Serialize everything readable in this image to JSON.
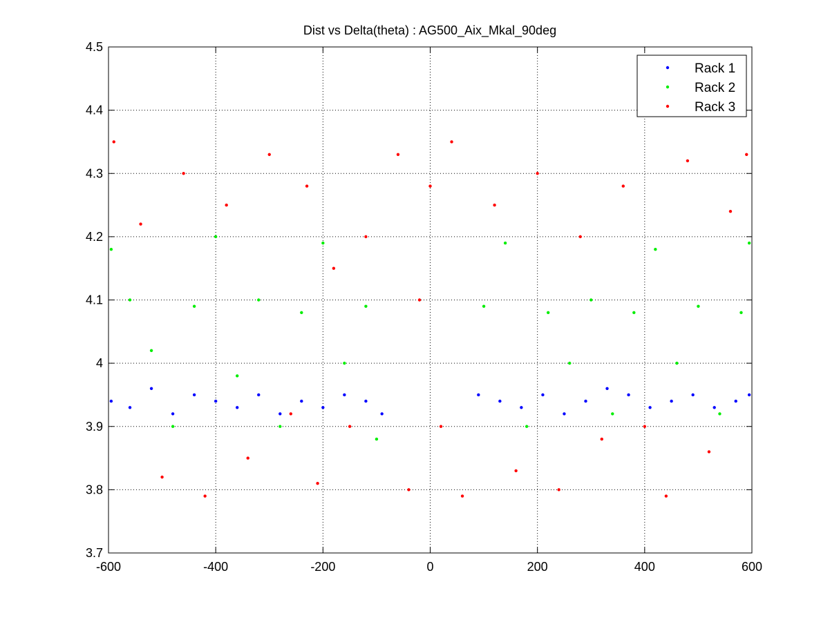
{
  "chart_data": {
    "type": "scatter",
    "title": "Dist vs Delta(theta) : AG500_Aix_Mkal_90deg",
    "xlabel": "",
    "ylabel": "",
    "xlim": [
      -600,
      600
    ],
    "ylim": [
      3.7,
      4.5
    ],
    "x_ticks": [
      "-600",
      "-400",
      "-200",
      "0",
      "200",
      "400",
      "600"
    ],
    "y_ticks": [
      "3.7",
      "3.8",
      "3.9",
      "4",
      "4.1",
      "4.2",
      "4.3",
      "4.4",
      "4.5"
    ],
    "grid": true,
    "legend_position": "top-right",
    "series": [
      {
        "name": "Rack 1",
        "color": "#0000ff",
        "points": [
          [
            -595,
            3.94
          ],
          [
            -560,
            3.93
          ],
          [
            -520,
            3.96
          ],
          [
            -480,
            3.92
          ],
          [
            -440,
            3.95
          ],
          [
            -400,
            3.94
          ],
          [
            -360,
            3.93
          ],
          [
            -320,
            3.95
          ],
          [
            -280,
            3.92
          ],
          [
            -240,
            3.94
          ],
          [
            -200,
            3.93
          ],
          [
            -160,
            3.95
          ],
          [
            -120,
            3.94
          ],
          [
            -90,
            3.92
          ],
          [
            90,
            3.95
          ],
          [
            130,
            3.94
          ],
          [
            170,
            3.93
          ],
          [
            210,
            3.95
          ],
          [
            250,
            3.92
          ],
          [
            290,
            3.94
          ],
          [
            330,
            3.96
          ],
          [
            370,
            3.95
          ],
          [
            410,
            3.93
          ],
          [
            450,
            3.94
          ],
          [
            490,
            3.95
          ],
          [
            530,
            3.93
          ],
          [
            570,
            3.94
          ],
          [
            595,
            3.95
          ]
        ]
      },
      {
        "name": "Rack 2",
        "color": "#00ee00",
        "points": [
          [
            -595,
            4.18
          ],
          [
            -560,
            4.1
          ],
          [
            -520,
            4.02
          ],
          [
            -480,
            3.9
          ],
          [
            -440,
            4.09
          ],
          [
            -400,
            4.2
          ],
          [
            -360,
            3.98
          ],
          [
            -320,
            4.1
          ],
          [
            -280,
            3.9
          ],
          [
            -240,
            4.08
          ],
          [
            -200,
            4.19
          ],
          [
            -160,
            4.0
          ],
          [
            -120,
            4.09
          ],
          [
            -100,
            3.88
          ],
          [
            100,
            4.09
          ],
          [
            140,
            4.19
          ],
          [
            180,
            3.9
          ],
          [
            220,
            4.08
          ],
          [
            260,
            4.0
          ],
          [
            300,
            4.1
          ],
          [
            340,
            3.92
          ],
          [
            380,
            4.08
          ],
          [
            420,
            4.18
          ],
          [
            460,
            4.0
          ],
          [
            500,
            4.09
          ],
          [
            540,
            3.92
          ],
          [
            580,
            4.08
          ],
          [
            595,
            4.19
          ]
        ]
      },
      {
        "name": "Rack 3",
        "color": "#ff0000",
        "points": [
          [
            -590,
            4.35
          ],
          [
            -540,
            4.22
          ],
          [
            -500,
            3.82
          ],
          [
            -460,
            4.3
          ],
          [
            -420,
            3.79
          ],
          [
            -380,
            4.25
          ],
          [
            -340,
            3.85
          ],
          [
            -300,
            4.33
          ],
          [
            -260,
            3.92
          ],
          [
            -230,
            4.28
          ],
          [
            -210,
            3.81
          ],
          [
            -180,
            4.15
          ],
          [
            -150,
            3.9
          ],
          [
            -120,
            4.2
          ],
          [
            -60,
            4.33
          ],
          [
            -40,
            3.8
          ],
          [
            -20,
            4.1
          ],
          [
            0,
            4.28
          ],
          [
            20,
            3.9
          ],
          [
            40,
            4.35
          ],
          [
            60,
            3.79
          ],
          [
            120,
            4.25
          ],
          [
            160,
            3.83
          ],
          [
            200,
            4.3
          ],
          [
            240,
            3.8
          ],
          [
            280,
            4.2
          ],
          [
            320,
            3.88
          ],
          [
            360,
            4.28
          ],
          [
            400,
            3.9
          ],
          [
            440,
            3.79
          ],
          [
            480,
            4.32
          ],
          [
            520,
            3.86
          ],
          [
            560,
            4.24
          ],
          [
            590,
            4.33
          ]
        ]
      }
    ]
  }
}
